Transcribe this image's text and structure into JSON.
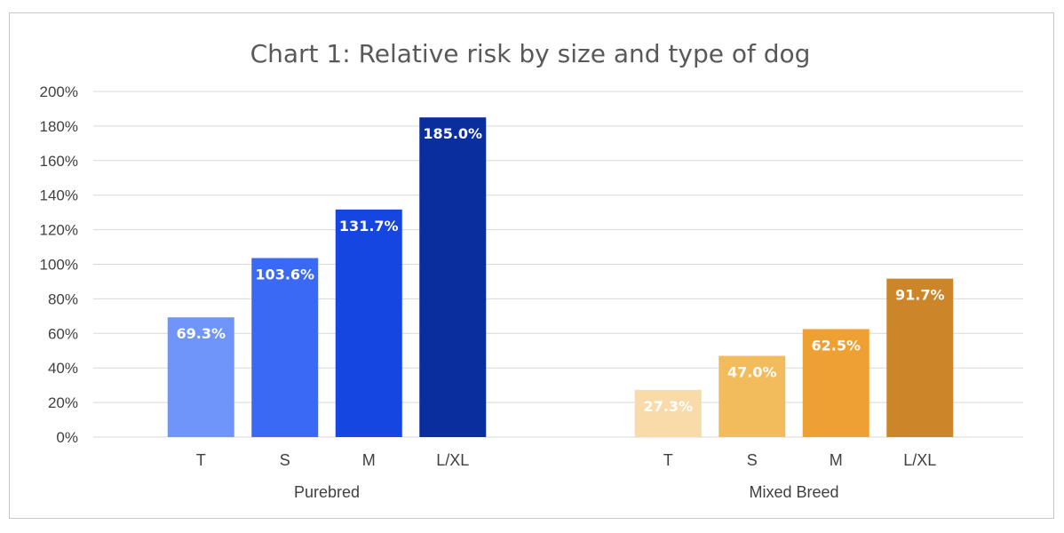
{
  "chart_data": {
    "type": "bar",
    "title": "Chart 1: Relative risk by size and type of dog",
    "xlabel": "",
    "ylabel": "",
    "ylim": [
      0,
      200
    ],
    "yticks": [
      "0%",
      "20%",
      "40%",
      "60%",
      "80%",
      "100%",
      "120%",
      "140%",
      "160%",
      "180%",
      "200%"
    ],
    "grid": true,
    "legend": "none",
    "groups": [
      {
        "name": "Purebred",
        "categories": [
          "T",
          "S",
          "M",
          "L/XL"
        ],
        "values": [
          69.3,
          103.6,
          131.7,
          185.0
        ],
        "labels": [
          "69.3%",
          "103.6%",
          "131.7%",
          "185.0%"
        ],
        "colors": [
          "#6f94fa",
          "#3a6af5",
          "#1646e0",
          "#0a2e9e"
        ]
      },
      {
        "name": "Mixed Breed",
        "categories": [
          "T",
          "S",
          "M",
          "L/XL"
        ],
        "values": [
          27.3,
          47.0,
          62.5,
          91.7
        ],
        "labels": [
          "27.3%",
          "47.0%",
          "62.5%",
          "91.7%"
        ],
        "colors": [
          "#f8dba8",
          "#f2bc5c",
          "#eea032",
          "#cc8629"
        ]
      }
    ]
  }
}
